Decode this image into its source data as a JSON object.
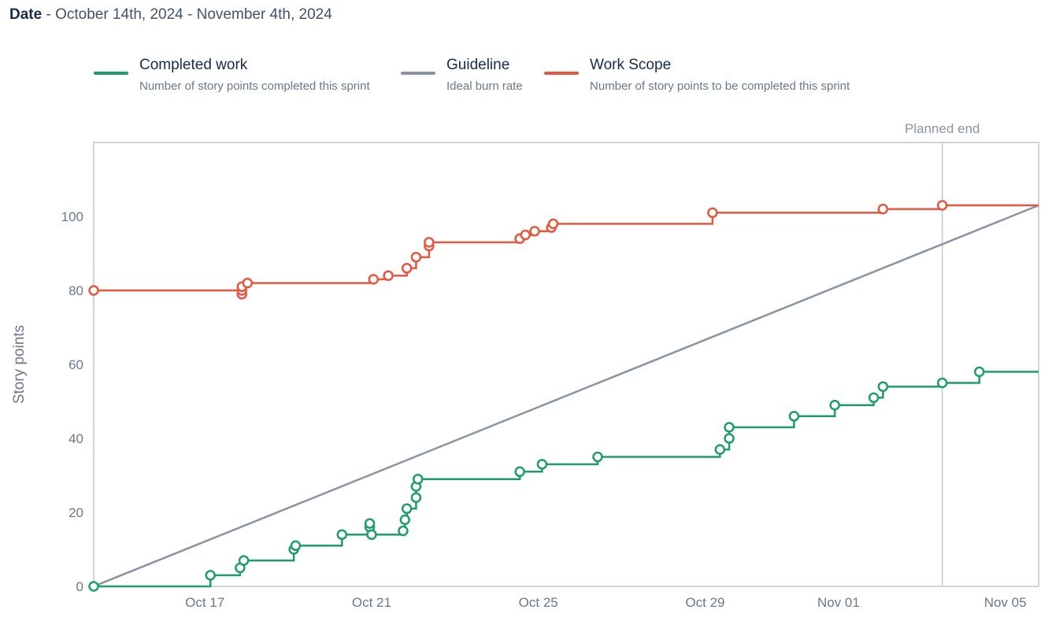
{
  "header": {
    "label": "Date",
    "separator": " - ",
    "range": "October 14th, 2024 - November 4th, 2024"
  },
  "legend": [
    {
      "name": "Completed work",
      "desc": "Number of story points completed this sprint",
      "color": "#1f9c6b"
    },
    {
      "name": "Guideline",
      "desc": "Ideal burn rate",
      "color": "#8993a4"
    },
    {
      "name": "Work Scope",
      "desc": "Number of story points to be completed this sprint",
      "color": "#e5573f"
    }
  ],
  "chart_data": {
    "type": "line",
    "ylabel": "Story points",
    "ylim": [
      0,
      120
    ],
    "yticks": [
      0,
      20,
      40,
      60,
      80,
      100
    ],
    "xlim": [
      14.0,
      39.5
    ],
    "xticks": [
      {
        "x": 17,
        "label": "Oct 17"
      },
      {
        "x": 21.5,
        "label": "Oct 21"
      },
      {
        "x": 26,
        "label": "Oct 25"
      },
      {
        "x": 30.5,
        "label": "Oct 29"
      },
      {
        "x": 34.1,
        "label": "Nov 01"
      },
      {
        "x": 38.6,
        "label": "Nov 05"
      }
    ],
    "planned_end": {
      "x": 36.9,
      "label": "Planned end"
    },
    "guideline": {
      "from": [
        14.0,
        0
      ],
      "to": [
        39.5,
        103
      ],
      "color": "#8993a4"
    },
    "series": [
      {
        "name": "Work Scope",
        "color": "#e5573f",
        "end_x": 39.5,
        "points": [
          [
            14.0,
            80
          ],
          [
            18.0,
            79
          ],
          [
            18.0,
            80
          ],
          [
            18.0,
            81
          ],
          [
            18.15,
            82
          ],
          [
            21.55,
            83
          ],
          [
            21.95,
            84
          ],
          [
            22.45,
            86
          ],
          [
            22.7,
            89
          ],
          [
            23.05,
            92
          ],
          [
            23.05,
            93
          ],
          [
            25.5,
            94
          ],
          [
            25.65,
            95
          ],
          [
            25.9,
            96
          ],
          [
            26.35,
            97
          ],
          [
            26.4,
            98
          ],
          [
            30.7,
            101
          ],
          [
            35.3,
            102
          ],
          [
            36.9,
            103
          ]
        ]
      },
      {
        "name": "Completed work",
        "color": "#1f9c6b",
        "end_x": 39.5,
        "points": [
          [
            14.0,
            0
          ],
          [
            17.15,
            3
          ],
          [
            17.95,
            5
          ],
          [
            18.05,
            7
          ],
          [
            19.4,
            10
          ],
          [
            19.45,
            11
          ],
          [
            20.7,
            14
          ],
          [
            21.45,
            16
          ],
          [
            21.45,
            17
          ],
          [
            21.5,
            14
          ],
          [
            22.35,
            15
          ],
          [
            22.4,
            18
          ],
          [
            22.45,
            21
          ],
          [
            22.7,
            24
          ],
          [
            22.7,
            27
          ],
          [
            22.75,
            29
          ],
          [
            25.5,
            31
          ],
          [
            26.1,
            33
          ],
          [
            27.6,
            35
          ],
          [
            30.9,
            37
          ],
          [
            31.15,
            40
          ],
          [
            31.15,
            43
          ],
          [
            32.9,
            46
          ],
          [
            34.0,
            49
          ],
          [
            35.05,
            51
          ],
          [
            35.3,
            54
          ],
          [
            36.9,
            55
          ],
          [
            37.9,
            58
          ]
        ]
      }
    ]
  }
}
